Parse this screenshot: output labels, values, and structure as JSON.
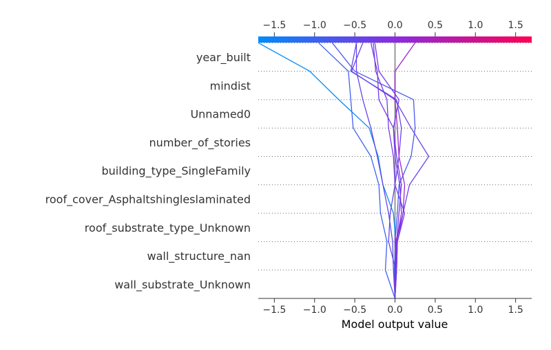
{
  "chart_data": {
    "type": "line",
    "title": "",
    "xlabel": "Model output value",
    "ylabel": "",
    "xlim": [
      -1.7,
      1.7
    ],
    "x_ticks": [
      -1.5,
      -1.0,
      -0.5,
      0.0,
      0.5,
      1.0,
      1.5
    ],
    "x_tick_labels": [
      "−1.5",
      "−1.0",
      "−0.5",
      "0.0",
      "0.5",
      "1.0",
      "1.5"
    ],
    "base_value": 0.0,
    "colorbar": {
      "min_color": "#008bfb",
      "mid_color": "#8a2be2",
      "max_color": "#ff0052"
    },
    "grid": "dotted-rows",
    "features": [
      "year_built",
      "mindist",
      "Unnamed0",
      "number_of_stories",
      "building_type_SingleFamily",
      "roof_cover_Asphaltshingleslaminated",
      "roof_substrate_type_Unknown",
      "wall_structure_nan",
      "wall_substrate_Unknown"
    ],
    "series": [
      {
        "values": [
          0.0,
          -0.01,
          0.01,
          -0.02,
          -0.15,
          -0.21,
          -0.32,
          -0.7,
          -1.06,
          -1.7
        ]
      },
      {
        "values": [
          0.0,
          0.02,
          0.0,
          0.03,
          0.05,
          0.2,
          0.25,
          0.23,
          -0.5,
          -0.78
        ]
      },
      {
        "values": [
          0.0,
          -0.12,
          -0.1,
          -0.18,
          -0.2,
          -0.3,
          -0.52,
          -0.55,
          -0.58,
          -0.95
        ]
      },
      {
        "values": [
          0.0,
          0.02,
          0.03,
          0.1,
          0.18,
          0.42,
          0.2,
          0.0,
          -0.54,
          -0.4
        ]
      },
      {
        "values": [
          0.0,
          0.01,
          -0.08,
          -0.06,
          0.0,
          0.05,
          0.08,
          0.02,
          -0.55,
          -0.48
        ]
      },
      {
        "values": [
          0.0,
          0.02,
          0.03,
          0.12,
          0.0,
          -0.02,
          -0.08,
          -0.1,
          -0.24,
          -0.27
        ]
      },
      {
        "values": [
          0.0,
          0.0,
          0.02,
          0.05,
          0.08,
          0.02,
          -0.02,
          -0.2,
          -0.22,
          -0.3
        ]
      },
      {
        "values": [
          0.0,
          0.01,
          0.02,
          0.08,
          0.06,
          0.0,
          -0.02,
          0.05,
          -0.2,
          -0.25
        ]
      },
      {
        "values": [
          0.0,
          0.0,
          0.01,
          0.1,
          0.12,
          0.05,
          0.03,
          0.0,
          0.0,
          0.25
        ]
      },
      {
        "values": [
          0.0,
          -0.02,
          -0.03,
          -0.08,
          -0.15,
          -0.22,
          -0.3,
          -0.4,
          -0.48,
          -0.48
        ]
      }
    ]
  }
}
